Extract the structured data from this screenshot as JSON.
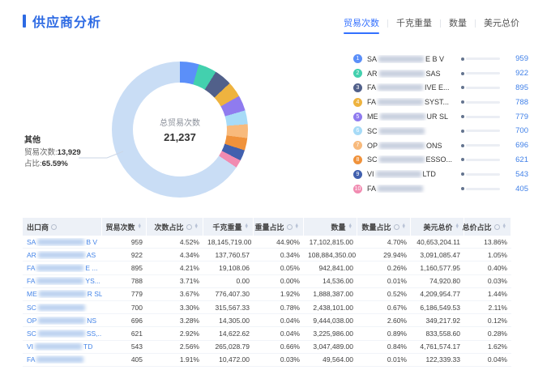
{
  "page": {
    "title": "供应商分析"
  },
  "tabs": [
    {
      "label": "贸易次数",
      "active": true
    },
    {
      "label": "千克重量",
      "active": false
    },
    {
      "label": "数量",
      "active": false
    },
    {
      "label": "美元总价",
      "active": false
    }
  ],
  "chart_data": {
    "type": "pie",
    "title": "总贸易次数",
    "center_label": "总贸易次数",
    "center_value": "21,237",
    "total": 21237,
    "legend_position": "right",
    "series": [
      {
        "rank": 1,
        "name_prefix": "SA",
        "name_suffix": "E B V",
        "value": 959,
        "pct": "4.52%",
        "color": "#5B8FF9"
      },
      {
        "rank": 2,
        "name_prefix": "AR",
        "name_suffix": "SAS",
        "value": 922,
        "pct": "4.34%",
        "color": "#43D0AE"
      },
      {
        "rank": 3,
        "name_prefix": "FA",
        "name_suffix": "IVE E...",
        "value": 895,
        "pct": "4.21%",
        "color": "#51608A"
      },
      {
        "rank": 4,
        "name_prefix": "FA",
        "name_suffix": "SYST...",
        "value": 788,
        "pct": "3.71%",
        "color": "#EEB33F"
      },
      {
        "rank": 5,
        "name_prefix": "ME",
        "name_suffix": "UR SL",
        "value": 779,
        "pct": "3.67%",
        "color": "#8F7BEF"
      },
      {
        "rank": 6,
        "name_prefix": "SC",
        "name_suffix": "",
        "value": 700,
        "pct": "3.30%",
        "color": "#A7DBF7"
      },
      {
        "rank": 7,
        "name_prefix": "OP",
        "name_suffix": "ONS",
        "value": 696,
        "pct": "3.28%",
        "color": "#F8BA7C"
      },
      {
        "rank": 8,
        "name_prefix": "SC",
        "name_suffix": "ESSO...",
        "value": 621,
        "pct": "2.92%",
        "color": "#F0923B"
      },
      {
        "rank": 9,
        "name_prefix": "VI",
        "name_suffix": "LTD",
        "value": 543,
        "pct": "2.56%",
        "color": "#4160AE"
      },
      {
        "rank": 10,
        "name_prefix": "FA",
        "name_suffix": "",
        "value": 405,
        "pct": "1.91%",
        "color": "#F18BB1"
      }
    ],
    "others": {
      "label": "其他",
      "count_label": "贸易次数:",
      "count_value": "13,929",
      "pct_label": "占比:",
      "pct_value": "65.59%",
      "value": 13929,
      "color": "#C9DDF5"
    }
  },
  "table": {
    "columns": [
      {
        "label": "出口商",
        "info": true,
        "sort": false,
        "align": "left"
      },
      {
        "label": "贸易次数",
        "info": false,
        "sort": true,
        "align": "right"
      },
      {
        "label": "次数占比",
        "info": true,
        "sort": true,
        "align": "right"
      },
      {
        "label": "千克重量",
        "info": false,
        "sort": true,
        "align": "right"
      },
      {
        "label": "重量占比",
        "info": true,
        "sort": true,
        "align": "right"
      },
      {
        "label": "数量",
        "info": false,
        "sort": true,
        "align": "right"
      },
      {
        "label": "数量占比",
        "info": true,
        "sort": true,
        "align": "right"
      },
      {
        "label": "美元总价",
        "info": false,
        "sort": true,
        "align": "right"
      },
      {
        "label": "总价占比",
        "info": true,
        "sort": true,
        "align": "right"
      }
    ],
    "rows": [
      {
        "exporter_prefix": "SA",
        "exporter_suffix": "B V",
        "trade_count": "959",
        "count_pct": "4.52%",
        "kg_weight": "18,145,719.00",
        "weight_pct": "44.90%",
        "quantity": "17,102,815.00",
        "quantity_pct": "4.70%",
        "usd_total": "40,653,204.11",
        "total_pct": "13.86%"
      },
      {
        "exporter_prefix": "AR",
        "exporter_suffix": "AS",
        "trade_count": "922",
        "count_pct": "4.34%",
        "kg_weight": "137,760.57",
        "weight_pct": "0.34%",
        "quantity": "108,884,350.00",
        "quantity_pct": "29.94%",
        "usd_total": "3,091,085.47",
        "total_pct": "1.05%"
      },
      {
        "exporter_prefix": "FA",
        "exporter_suffix": "E ...",
        "trade_count": "895",
        "count_pct": "4.21%",
        "kg_weight": "19,108.06",
        "weight_pct": "0.05%",
        "quantity": "942,841.00",
        "quantity_pct": "0.26%",
        "usd_total": "1,160,577.95",
        "total_pct": "0.40%"
      },
      {
        "exporter_prefix": "FA",
        "exporter_suffix": "YS...",
        "trade_count": "788",
        "count_pct": "3.71%",
        "kg_weight": "0.00",
        "weight_pct": "0.00%",
        "quantity": "14,536.00",
        "quantity_pct": "0.01%",
        "usd_total": "74,920.80",
        "total_pct": "0.03%"
      },
      {
        "exporter_prefix": "ME",
        "exporter_suffix": "R SL",
        "trade_count": "779",
        "count_pct": "3.67%",
        "kg_weight": "776,407.30",
        "weight_pct": "1.92%",
        "quantity": "1,888,387.00",
        "quantity_pct": "0.52%",
        "usd_total": "4,209,954.77",
        "total_pct": "1.44%"
      },
      {
        "exporter_prefix": "SC",
        "exporter_suffix": "",
        "trade_count": "700",
        "count_pct": "3.30%",
        "kg_weight": "315,567.33",
        "weight_pct": "0.78%",
        "quantity": "2,438,101.00",
        "quantity_pct": "0.67%",
        "usd_total": "6,186,549.53",
        "total_pct": "2.11%"
      },
      {
        "exporter_prefix": "OP",
        "exporter_suffix": "NS",
        "trade_count": "696",
        "count_pct": "3.28%",
        "kg_weight": "14,305.00",
        "weight_pct": "0.04%",
        "quantity": "9,444,038.00",
        "quantity_pct": "2.60%",
        "usd_total": "349,217.92",
        "total_pct": "0.12%"
      },
      {
        "exporter_prefix": "SC",
        "exporter_suffix": "SS,...",
        "trade_count": "621",
        "count_pct": "2.92%",
        "kg_weight": "14,622.62",
        "weight_pct": "0.04%",
        "quantity": "3,225,986.00",
        "quantity_pct": "0.89%",
        "usd_total": "833,558.60",
        "total_pct": "0.28%"
      },
      {
        "exporter_prefix": "VI",
        "exporter_suffix": "TD",
        "trade_count": "543",
        "count_pct": "2.56%",
        "kg_weight": "265,028.79",
        "weight_pct": "0.66%",
        "quantity": "3,047,489.00",
        "quantity_pct": "0.84%",
        "usd_total": "4,761,574.17",
        "total_pct": "1.62%"
      },
      {
        "exporter_prefix": "FA",
        "exporter_suffix": "",
        "trade_count": "405",
        "count_pct": "1.91%",
        "kg_weight": "10,472.00",
        "weight_pct": "0.03%",
        "quantity": "49,564.00",
        "quantity_pct": "0.01%",
        "usd_total": "122,339.33",
        "total_pct": "0.04%"
      }
    ]
  }
}
